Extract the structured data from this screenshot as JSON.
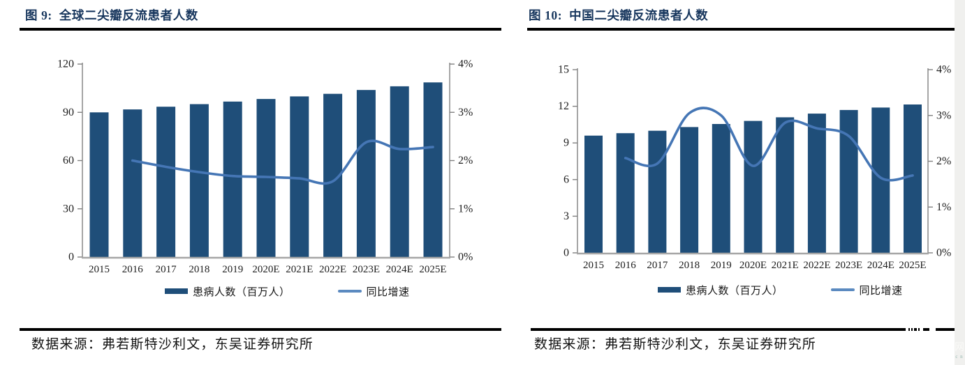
{
  "page": {
    "sources": [
      "数据来源：弗若斯特沙利文，东吴证券研究所",
      "数据来源：弗若斯特沙利文，东吴证券研究所"
    ],
    "watermark_glyph": "网",
    "watermark_letters": "c n",
    "title_color": "#17365d",
    "edge_strip_color": "#f0f0ee"
  },
  "chart_data": [
    {
      "type": "bar",
      "title": "图 9:  全球二尖瓣反流患者人数",
      "categories": [
        "2015",
        "2016",
        "2017",
        "2018",
        "2019",
        "2020E",
        "2021E",
        "2022E",
        "2023E",
        "2024E",
        "2025E"
      ],
      "series": [
        {
          "name": "患病人数（百万人）",
          "kind": "bar",
          "axis": "left",
          "values": [
            90,
            91.8,
            93.5,
            95.1,
            96.7,
            98.3,
            99.9,
            101.5,
            103.9,
            106.2,
            108.6
          ]
        },
        {
          "name": "同比增速",
          "kind": "line",
          "axis": "right",
          "unit": "%",
          "values": [
            null,
            2.0,
            1.87,
            1.76,
            1.68,
            1.66,
            1.63,
            1.57,
            2.38,
            2.24,
            2.28
          ]
        }
      ],
      "left_axis": {
        "min": 0,
        "max": 120,
        "ticks": [
          0,
          30,
          60,
          90,
          120
        ]
      },
      "right_axis": {
        "min": 0,
        "max": 4,
        "tick_labels": [
          "0%",
          "1%",
          "2%",
          "3%",
          "4%"
        ]
      },
      "legend_position": "bottom",
      "grid": false,
      "colors": {
        "bar": "#1f4e79",
        "line": "#4576b5",
        "legend_line": "#5b8ac0",
        "axis": "#808080",
        "baseline": "#a6a6a6"
      }
    },
    {
      "type": "bar",
      "title": "图 10:  中国二尖瓣反流患者人数",
      "categories": [
        "2015",
        "2016",
        "2017",
        "2018",
        "2019",
        "2020E",
        "2021E",
        "2022E",
        "2023E",
        "2024E",
        "2025E"
      ],
      "series": [
        {
          "name": "患病人数（百万人）",
          "kind": "bar",
          "axis": "left",
          "values": [
            9.6,
            9.8,
            10.0,
            10.3,
            10.55,
            10.8,
            11.1,
            11.4,
            11.7,
            11.9,
            12.15
          ]
        },
        {
          "name": "同比增速",
          "kind": "line",
          "axis": "right",
          "unit": "%",
          "values": [
            null,
            2.07,
            1.95,
            3.05,
            3.0,
            1.9,
            2.84,
            2.72,
            2.55,
            1.64,
            1.69
          ]
        }
      ],
      "left_axis": {
        "min": 0,
        "max": 15,
        "ticks": [
          0,
          3,
          6,
          9,
          12,
          15
        ]
      },
      "right_axis": {
        "min": 0,
        "max": 4,
        "tick_labels": [
          "0%",
          "1%",
          "2%",
          "3%",
          "4%"
        ]
      },
      "legend_position": "bottom",
      "grid": false,
      "colors": {
        "bar": "#1f4e79",
        "line": "#4576b5",
        "legend_line": "#5b8ac0",
        "axis": "#808080",
        "baseline": "#a6a6a6"
      }
    }
  ]
}
